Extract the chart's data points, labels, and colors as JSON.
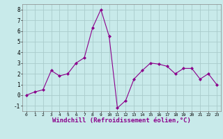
{
  "x": [
    0,
    1,
    2,
    3,
    4,
    5,
    6,
    7,
    8,
    9,
    10,
    11,
    12,
    13,
    14,
    15,
    16,
    17,
    18,
    19,
    20,
    21,
    22,
    23
  ],
  "y": [
    0.0,
    0.3,
    0.5,
    2.3,
    1.8,
    2.0,
    3.0,
    3.5,
    6.3,
    8.0,
    5.5,
    -1.2,
    -0.5,
    1.5,
    2.3,
    3.0,
    2.9,
    2.7,
    2.0,
    2.5,
    2.5,
    1.5,
    2.0,
    1.0
  ],
  "line_color": "#8b008b",
  "marker": "D",
  "marker_size": 2,
  "bg_color": "#c8eaea",
  "grid_color": "#aacccc",
  "xlabel": "Windchill (Refroidissement éolien,°C)",
  "xlabel_fontsize": 6.5,
  "yticks": [
    -1,
    0,
    1,
    2,
    3,
    4,
    5,
    6,
    7,
    8
  ],
  "xticks": [
    0,
    1,
    2,
    3,
    4,
    5,
    6,
    7,
    8,
    9,
    10,
    11,
    12,
    13,
    14,
    15,
    16,
    17,
    18,
    19,
    20,
    21,
    22,
    23
  ],
  "ylim": [
    -1.5,
    8.5
  ],
  "xlim": [
    -0.5,
    23.5
  ]
}
